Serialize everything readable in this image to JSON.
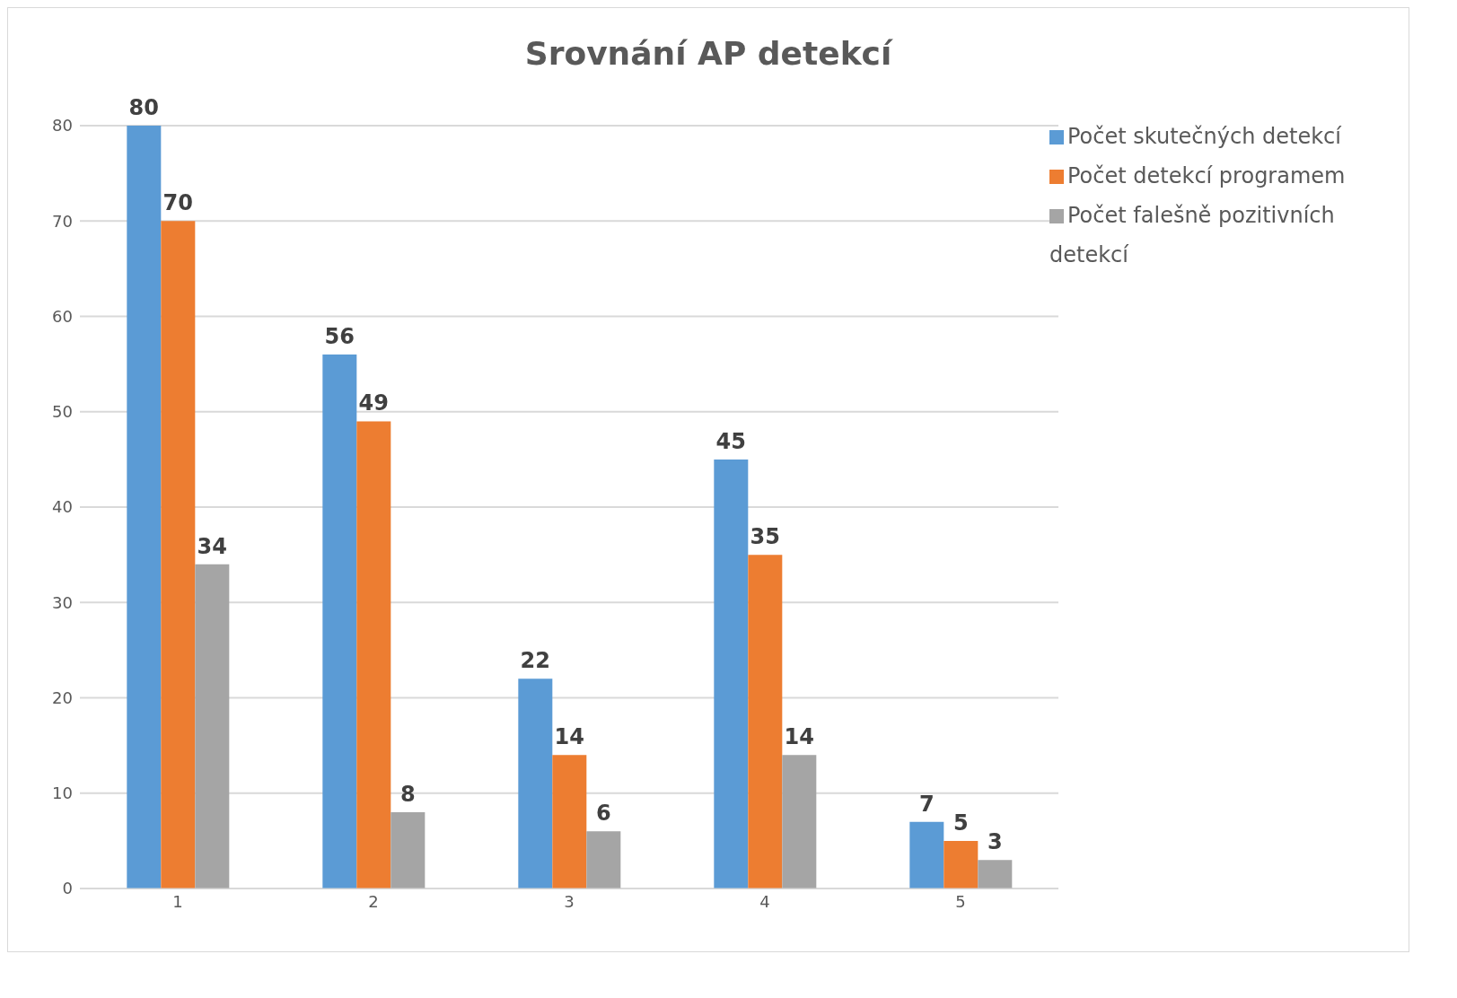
{
  "chart_data": {
    "type": "bar",
    "title": "Srovnání AP detekcí",
    "categories": [
      "1",
      "2",
      "3",
      "4",
      "5"
    ],
    "series": [
      {
        "name": "Počet skutečných detekcí",
        "color": "#5b9bd5",
        "values": [
          80,
          56,
          22,
          45,
          7
        ]
      },
      {
        "name": "Počet detekcí programem",
        "color": "#ed7d31",
        "values": [
          70,
          49,
          14,
          35,
          5
        ]
      },
      {
        "name": "Počet falešně pozitivních detekcí",
        "color": "#a5a5a5",
        "values": [
          34,
          8,
          6,
          14,
          3
        ]
      }
    ],
    "ylim": [
      0,
      80
    ],
    "yticks": [
      0,
      10,
      20,
      30,
      40,
      50,
      60,
      70,
      80
    ],
    "grid": "y",
    "legend": "top right",
    "data_labels": true
  }
}
